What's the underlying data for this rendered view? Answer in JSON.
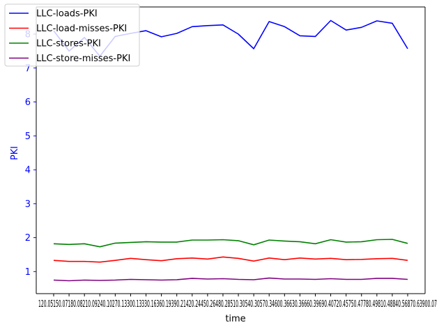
{
  "chart_data": {
    "type": "line",
    "title": "",
    "xlabel": "time",
    "ylabel": "PKI",
    "ylabel_color": "#0000ff",
    "ylim": [
      0.35,
      8.8
    ],
    "yticks": [
      1,
      2,
      3,
      4,
      5,
      6,
      7,
      8
    ],
    "x_tick_text": "120.05150.07180.08210.09240.10270.13300.13330.16360.19390.21420.24450.26480.28510.30540.30570.34600.36630.36660.39690.40720.45750.47780.49810.48840.56870.63900.07",
    "x_count": 24,
    "grid": false,
    "legend_position": "top-left",
    "series": [
      {
        "name": "LLC-loads-PKI",
        "color": "#0000ff",
        "values": [
          8.1,
          7.5,
          7.9,
          7.35,
          7.93,
          8.02,
          8.1,
          7.92,
          8.02,
          8.22,
          8.25,
          8.27,
          8.0,
          7.57,
          8.37,
          8.22,
          7.95,
          7.93,
          8.4,
          8.12,
          8.2,
          8.39,
          8.32,
          7.57
        ]
      },
      {
        "name": "LLC-load-misses-PKI",
        "color": "#ff0000",
        "values": [
          1.33,
          1.3,
          1.3,
          1.28,
          1.33,
          1.39,
          1.35,
          1.32,
          1.38,
          1.4,
          1.37,
          1.43,
          1.39,
          1.31,
          1.4,
          1.35,
          1.4,
          1.37,
          1.39,
          1.35,
          1.36,
          1.38,
          1.39,
          1.33
        ]
      },
      {
        "name": "LLC-stores-PKI",
        "color": "#008000",
        "values": [
          1.82,
          1.8,
          1.82,
          1.73,
          1.84,
          1.86,
          1.88,
          1.87,
          1.87,
          1.93,
          1.93,
          1.94,
          1.91,
          1.79,
          1.93,
          1.9,
          1.88,
          1.82,
          1.94,
          1.87,
          1.88,
          1.94,
          1.95,
          1.83
        ]
      },
      {
        "name": "LLC-store-misses-PKI",
        "color": "#800080",
        "values": [
          0.75,
          0.73,
          0.75,
          0.74,
          0.75,
          0.77,
          0.76,
          0.75,
          0.76,
          0.8,
          0.78,
          0.79,
          0.77,
          0.76,
          0.81,
          0.78,
          0.78,
          0.77,
          0.79,
          0.77,
          0.77,
          0.8,
          0.8,
          0.77
        ]
      }
    ]
  }
}
